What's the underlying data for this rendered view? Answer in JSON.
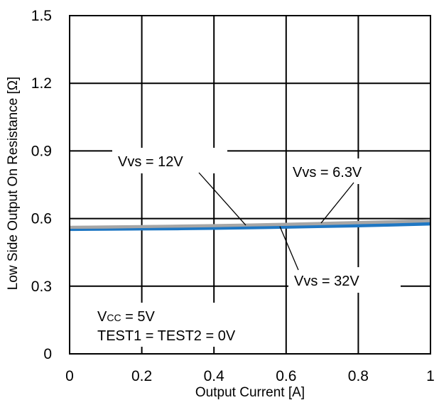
{
  "chart_data": {
    "type": "line",
    "xlabel": "Output Current [A]",
    "ylabel": "Low Side Output On Resistance [Ω]",
    "xlim": [
      0,
      1
    ],
    "ylim": [
      0,
      1.5
    ],
    "x_ticks": [
      "0",
      "0.2",
      "0.4",
      "0.6",
      "0.8",
      "1"
    ],
    "y_ticks": [
      "0",
      "0.3",
      "0.6",
      "0.9",
      "1.2",
      "1.5"
    ],
    "grid": true,
    "series": [
      {
        "name": "Vvs = 6.3V",
        "color": "#a6a6a6",
        "x": [
          0,
          0.1,
          0.2,
          0.3,
          0.4,
          0.5,
          0.6,
          0.7,
          0.8,
          0.9,
          1.0
        ],
        "y": [
          0.562,
          0.563,
          0.565,
          0.567,
          0.569,
          0.572,
          0.575,
          0.579,
          0.583,
          0.587,
          0.592
        ]
      },
      {
        "name": "Vvs = 12V",
        "color": "#a6a6a6",
        "x": [
          0,
          0.1,
          0.2,
          0.3,
          0.4,
          0.5,
          0.6,
          0.7,
          0.8,
          0.9,
          1.0
        ],
        "y": [
          0.561,
          0.562,
          0.564,
          0.566,
          0.568,
          0.571,
          0.574,
          0.577,
          0.581,
          0.585,
          0.59
        ]
      },
      {
        "name": "Vvs = 32V",
        "color": "#1f77c3",
        "x": [
          0,
          0.1,
          0.2,
          0.3,
          0.4,
          0.5,
          0.6,
          0.7,
          0.8,
          0.9,
          1.0
        ],
        "y": [
          0.556,
          0.557,
          0.558,
          0.559,
          0.561,
          0.563,
          0.566,
          0.569,
          0.572,
          0.576,
          0.58
        ]
      }
    ],
    "annotations": {
      "vvs12": "Vvs = 12V",
      "vvs63": "Vvs = 6.3V",
      "vvs32": "Vvs = 32V",
      "vcc_main": "V",
      "vcc_sub": "CC",
      "vcc_rest": " = 5V",
      "test": "TEST1 = TEST2 = 0V"
    }
  }
}
